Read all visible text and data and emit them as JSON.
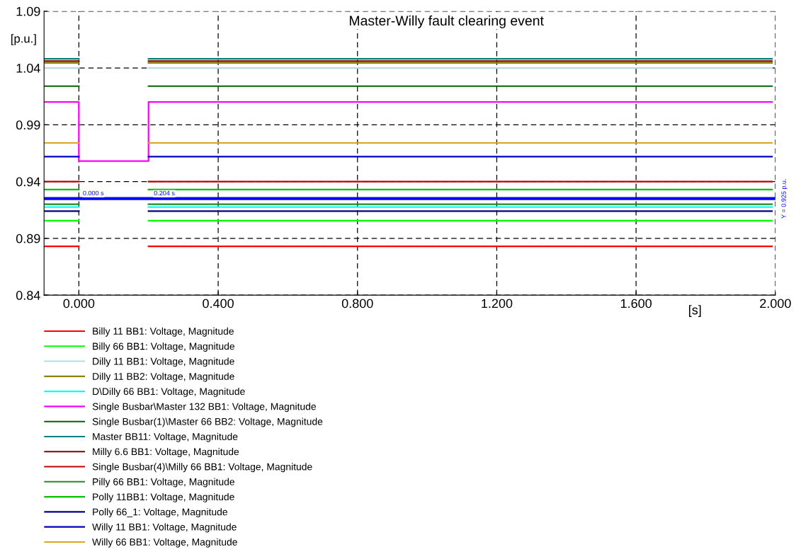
{
  "chart_data": {
    "type": "line",
    "title": "Master-Willy fault clearing event",
    "xlabel": "[s]",
    "ylabel": "[p.u.]",
    "x": [
      -0.1,
      0.0,
      0.0,
      0.2,
      0.2,
      1.99
    ],
    "xlim": [
      -0.1,
      2.0
    ],
    "ylim": [
      0.84,
      1.09
    ],
    "xticks": [
      {
        "value": 0.0,
        "label": "0.000"
      },
      {
        "value": 0.4,
        "label": "0.400"
      },
      {
        "value": 0.8,
        "label": "0.800"
      },
      {
        "value": 1.2,
        "label": "1.200"
      },
      {
        "value": 1.6,
        "label": "1.600"
      },
      {
        "value": 2.0,
        "label": "2.000"
      }
    ],
    "yticks": [
      0.84,
      0.89,
      0.94,
      0.99,
      1.04,
      1.09
    ],
    "grid": true,
    "legend": "bottom",
    "line_style": "solid",
    "marker": "none",
    "series": [
      {
        "name": "Billy 11 BB1: Voltage, Magnitude",
        "color": "#ff0000",
        "values": [
          0.883,
          0.883,
          null,
          null,
          0.883,
          0.883
        ]
      },
      {
        "name": "Billy 66 BB1: Voltage, Magnitude",
        "color": "#00ff00",
        "values": [
          0.9055,
          0.9055,
          null,
          null,
          0.9055,
          0.9055
        ]
      },
      {
        "name": "Dilly 11 BB1: Voltage, Magnitude",
        "color": "#b0e0e6",
        "values": [
          1.04,
          1.04,
          null,
          null,
          1.04,
          1.04
        ]
      },
      {
        "name": "Dilly 11 BB2: Voltage, Magnitude",
        "color": "#8c8000",
        "values": [
          1.0445,
          1.0445,
          null,
          null,
          1.0445,
          1.0445
        ]
      },
      {
        "name": "D\\Dilly 66 BB1: Voltage, Magnitude",
        "color": "#00ffff",
        "values": [
          0.9175,
          0.9175,
          null,
          null,
          0.9175,
          0.9175
        ]
      },
      {
        "name": "Single Busbar\\Master 132 BB1: Voltage, Magnitude",
        "color": "#ff00ff",
        "values": [
          1.01,
          1.01,
          0.958,
          0.958,
          1.01,
          1.01
        ]
      },
      {
        "name": "Single Busbar(1)\\Master 66 BB2: Voltage, Magnitude",
        "color": "#006400",
        "values": [
          1.024,
          1.024,
          null,
          null,
          1.024,
          1.024
        ]
      },
      {
        "name": "Master BB11: Voltage, Magnitude",
        "color": "#008080",
        "values": [
          1.048,
          1.048,
          null,
          null,
          1.048,
          1.048
        ]
      },
      {
        "name": "Milly 6.6 BB1: Voltage, Magnitude",
        "color": "#800000",
        "values": [
          1.046,
          1.046,
          null,
          null,
          1.046,
          1.046
        ]
      },
      {
        "name": "Single Busbar(4)\\Milly 66 BB1: Voltage, Magnitude",
        "color": "#c00000",
        "values": [
          0.94,
          0.94,
          null,
          null,
          0.94,
          0.94
        ]
      },
      {
        "name": "Pilly 66 BB1: Voltage, Magnitude",
        "color": "#228b22",
        "values": [
          0.92,
          0.92,
          null,
          null,
          0.92,
          0.92
        ]
      },
      {
        "name": "Polly 11BB1: Voltage, Magnitude",
        "color": "#00c000",
        "values": [
          0.933,
          0.933,
          null,
          null,
          0.933,
          0.933
        ]
      },
      {
        "name": "Polly 66_1: Voltage, Magnitude",
        "color": "#000080",
        "values": [
          0.914,
          0.914,
          null,
          null,
          0.914,
          0.914
        ]
      },
      {
        "name": "Willy 11 BB1: Voltage, Magnitude",
        "color": "#0000c0",
        "values": [
          0.962,
          0.962,
          null,
          null,
          0.962,
          0.962
        ]
      },
      {
        "name": "Willy 66 BB1: Voltage, Magnitude",
        "color": "#daa520",
        "values": [
          0.974,
          0.974,
          null,
          null,
          0.974,
          0.974
        ]
      }
    ],
    "ref_lines": [
      {
        "axis": "y",
        "value": 0.925,
        "label": "Y = 0.925 p.u.",
        "color": "#0000ff"
      }
    ],
    "annotations": [
      {
        "text": "0.000 s",
        "x": 0.0,
        "y": 0.925
      },
      {
        "text": "0.204 s",
        "x": 0.204,
        "y": 0.925
      }
    ]
  }
}
